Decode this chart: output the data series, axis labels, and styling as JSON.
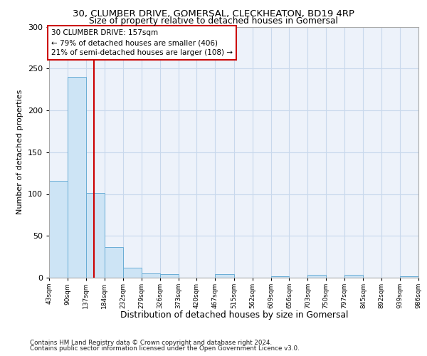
{
  "title1": "30, CLUMBER DRIVE, GOMERSAL, CLECKHEATON, BD19 4RP",
  "title2": "Size of property relative to detached houses in Gomersal",
  "xlabel": "Distribution of detached houses by size in Gomersal",
  "ylabel": "Number of detached properties",
  "bin_edges": [
    43,
    90,
    137,
    184,
    232,
    279,
    326,
    373,
    420,
    467,
    515,
    562,
    609,
    656,
    703,
    750,
    797,
    845,
    892,
    939,
    986
  ],
  "bar_heights": [
    116,
    240,
    101,
    37,
    12,
    5,
    4,
    0,
    0,
    4,
    0,
    0,
    2,
    0,
    3,
    0,
    3,
    0,
    0,
    2
  ],
  "bar_facecolor": "#cde4f5",
  "bar_edgecolor": "#6aadd5",
  "grid_color": "#c8d8ec",
  "background_color": "#edf2fa",
  "vline_x": 157,
  "vline_color": "#cc0000",
  "annotation_line1": "30 CLUMBER DRIVE: 157sqm",
  "annotation_line2": "← 79% of detached houses are smaller (406)",
  "annotation_line3": "21% of semi-detached houses are larger (108) →",
  "ann_box_color": "#cc0000",
  "ylim": [
    0,
    300
  ],
  "yticks": [
    0,
    50,
    100,
    150,
    200,
    250,
    300
  ],
  "footer1": "Contains HM Land Registry data © Crown copyright and database right 2024.",
  "footer2": "Contains public sector information licensed under the Open Government Licence v3.0.",
  "tick_labels": [
    "43sqm",
    "90sqm",
    "137sqm",
    "184sqm",
    "232sqm",
    "279sqm",
    "326sqm",
    "373sqm",
    "420sqm",
    "467sqm",
    "515sqm",
    "562sqm",
    "609sqm",
    "656sqm",
    "703sqm",
    "750sqm",
    "797sqm",
    "845sqm",
    "892sqm",
    "939sqm",
    "986sqm"
  ]
}
